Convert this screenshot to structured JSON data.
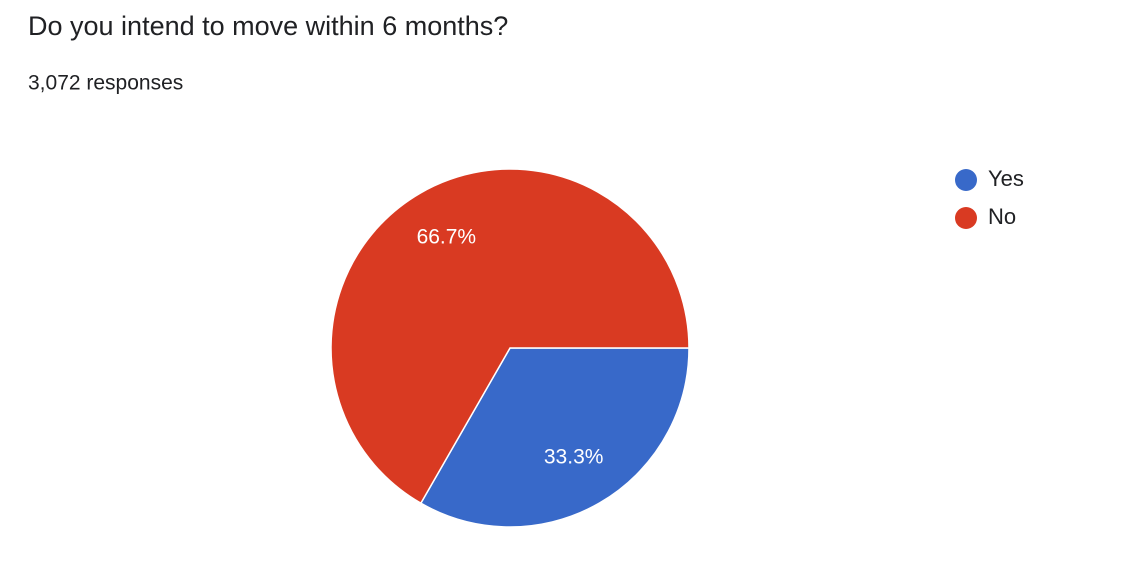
{
  "chart_data": {
    "type": "pie",
    "title": "Do you intend to move within 6 months?",
    "subtitle": "3,072 responses",
    "categories": [
      "Yes",
      "No"
    ],
    "values": [
      33.3,
      66.7
    ],
    "value_labels": [
      "33.3%",
      "66.7%"
    ],
    "colors": [
      "#3869c9",
      "#d93a22"
    ],
    "legend": "right"
  }
}
